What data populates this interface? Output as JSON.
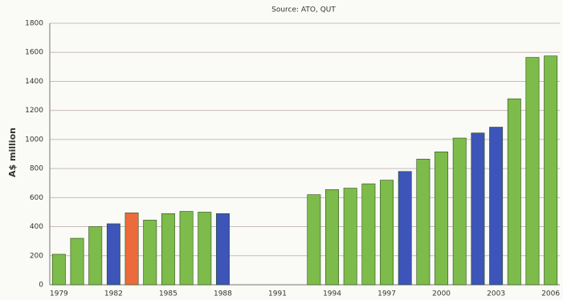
{
  "chart_data": {
    "type": "bar",
    "subtitle": "Source: ATO, QUT",
    "y_label": "A$ million",
    "categories": [
      "1979",
      null,
      null,
      "1982",
      null,
      null,
      "1985",
      null,
      null,
      "1988",
      null,
      null,
      "1991",
      null,
      null,
      "1994",
      null,
      null,
      "1997",
      null,
      null,
      "2000",
      null,
      null,
      "2003",
      null,
      null,
      "2006"
    ],
    "values": [
      210,
      320,
      400,
      420,
      495,
      445,
      490,
      505,
      500,
      490,
      null,
      null,
      null,
      null,
      620,
      655,
      665,
      695,
      720,
      780,
      865,
      915,
      1010,
      1045,
      1085,
      1280,
      1565,
      1575
    ],
    "colors": [
      "#7dbb4a",
      "#7dbb4a",
      "#7dbb4a",
      "#3d55b8",
      "#ec6a3c",
      "#7dbb4a",
      "#7dbb4a",
      "#7dbb4a",
      "#7dbb4a",
      "#3d55b8",
      null,
      null,
      null,
      null,
      "#7dbb4a",
      "#7dbb4a",
      "#7dbb4a",
      "#7dbb4a",
      "#7dbb4a",
      "#3d55b8",
      "#7dbb4a",
      "#7dbb4a",
      "#7dbb4a",
      "#3d55b8",
      "#3d55b8",
      "#7dbb4a",
      "#7dbb4a",
      "#7dbb4a"
    ],
    "ylim": [
      0,
      1800
    ],
    "yticks": [
      0,
      200,
      400,
      600,
      800,
      1000,
      1200,
      1400,
      1600,
      1800
    ],
    "grid": true
  }
}
